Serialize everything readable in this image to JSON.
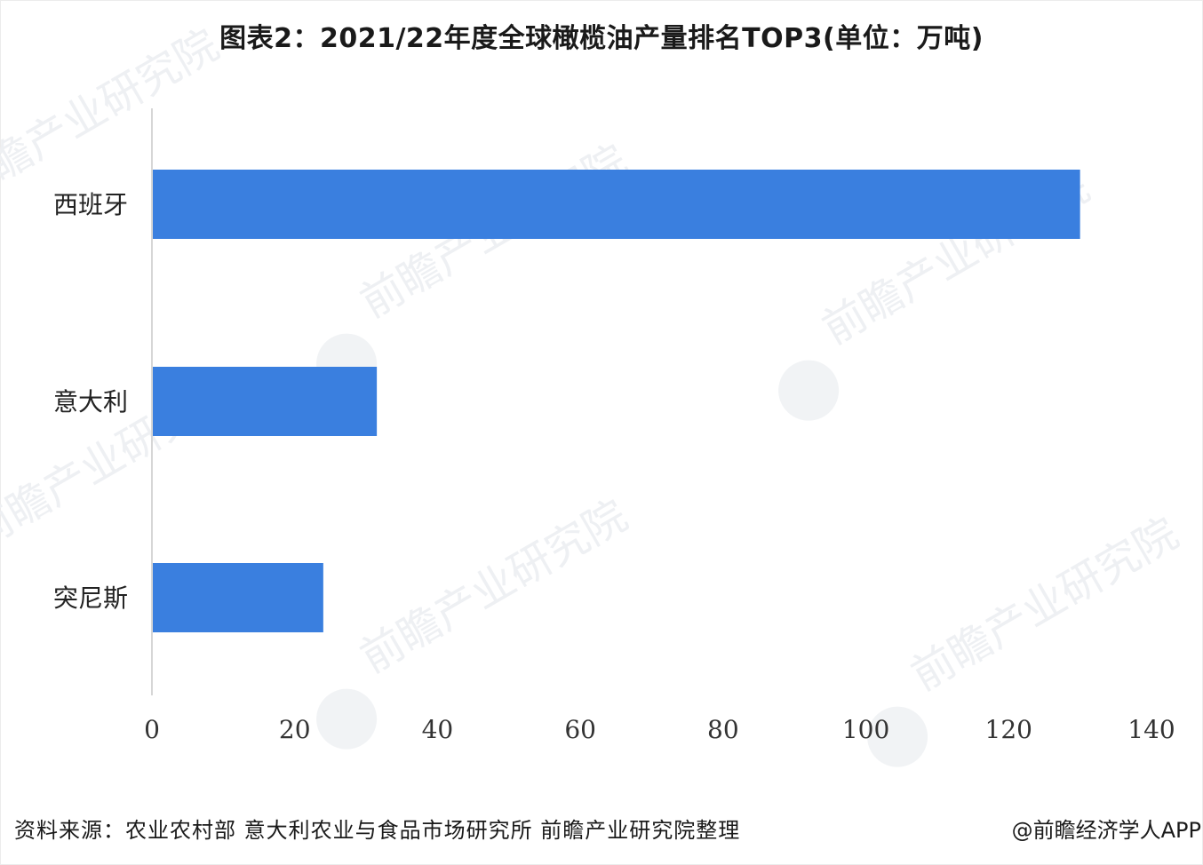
{
  "title": "图表2：2021/22年度全球橄榄油产量排名TOP3(单位：万吨)",
  "chart_data": {
    "type": "bar",
    "orientation": "horizontal",
    "categories": [
      "西班牙",
      "意大利",
      "突尼斯"
    ],
    "values": [
      130,
      31.5,
      24
    ],
    "xlim": [
      0,
      140
    ],
    "xticks": [
      "0",
      "20",
      "40",
      "60",
      "80",
      "100",
      "120",
      "140"
    ],
    "grid": false,
    "bar_color": "#3a7fdf"
  },
  "footer": {
    "source": "资料来源：农业农村部 意大利农业与食品市场研究所 前瞻产业研究院整理",
    "credit": "@前瞻经济学人APP"
  },
  "watermark": {
    "brand": "前瞻产业研究院"
  }
}
